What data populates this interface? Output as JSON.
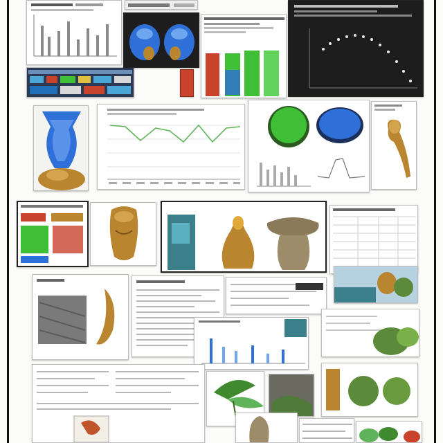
{
  "collage": {
    "description_visible_text": "",
    "accent_colors": {
      "blue": "#2f6fd8",
      "green": "#3fbf35",
      "ochre": "#b9862f",
      "red": "#c8422c",
      "dark_panel": "#1d1d1d",
      "line_green": "#5fb35a"
    },
    "icons": [
      "blue-vase-figure",
      "green-sphere",
      "blue-sphere",
      "ochre-cone",
      "stone-mushroom",
      "green-leaf-plant",
      "seed-pods"
    ]
  }
}
